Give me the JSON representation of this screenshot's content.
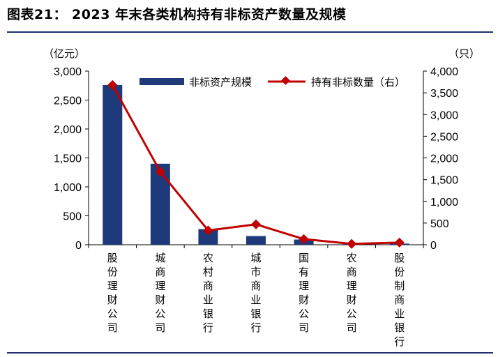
{
  "header": {
    "title": "图表21： 2023 年末各类机构持有非标资产数量及规模"
  },
  "colors": {
    "bar": "#1f3a7a",
    "line": "#c00000",
    "rule": "#1f2f6b"
  },
  "chart_data": {
    "type": "bar",
    "categories": [
      "股份理财公司",
      "城商理财公司",
      "农村商业银行",
      "城市商业银行",
      "国有理财公司",
      "农商理财公司",
      "股份制商业银行"
    ],
    "series": [
      {
        "name": "非标资产规模",
        "type": "bar",
        "axis": "left",
        "values": [
          2760,
          1400,
          270,
          150,
          90,
          10,
          20
        ]
      },
      {
        "name": "持有非标数量（右）",
        "type": "line",
        "axis": "right",
        "values": [
          3680,
          1680,
          330,
          470,
          130,
          20,
          50
        ]
      }
    ],
    "y_left": {
      "unit": "（亿元）",
      "ylim": [
        0,
        3000
      ],
      "ticks": [
        "0",
        "500",
        "1,000",
        "1,500",
        "2,000",
        "2,500",
        "3,000"
      ]
    },
    "y_right": {
      "unit": "（只）",
      "ylim": [
        0,
        4000
      ],
      "ticks": [
        "0",
        "500",
        "1,000",
        "1,500",
        "2,000",
        "2,500",
        "3,000",
        "3,500",
        "4,000"
      ]
    },
    "legend_position": "top",
    "grid": false
  }
}
